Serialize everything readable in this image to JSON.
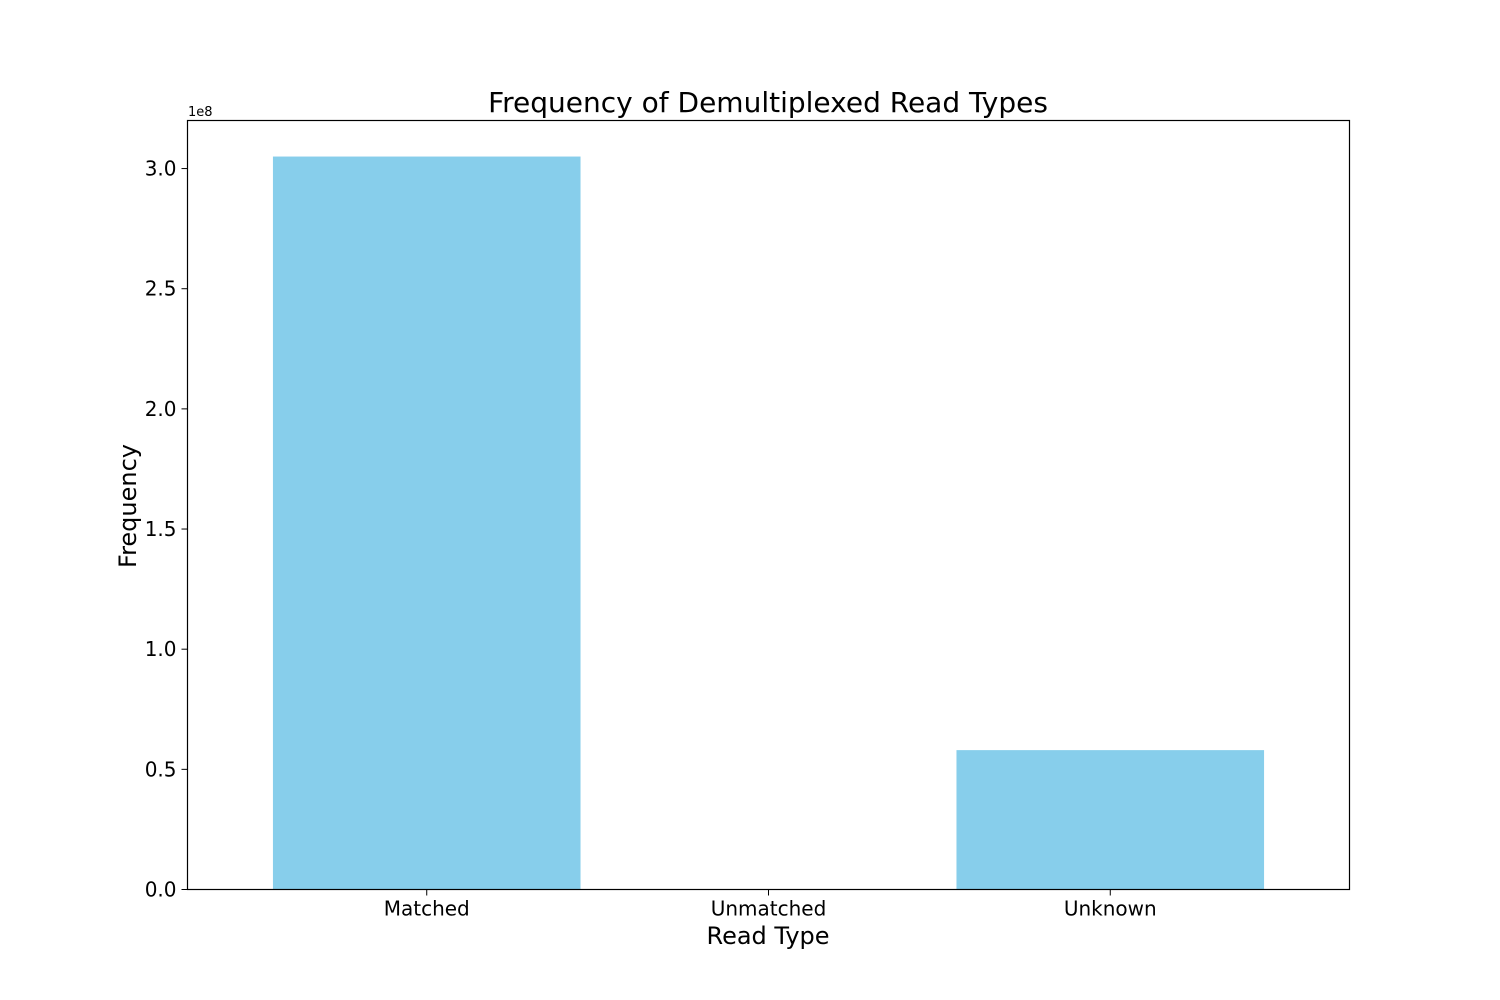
{
  "chart_data": {
    "type": "bar",
    "title": "Frequency of Demultiplexed Read Types",
    "xlabel": "Read Type",
    "ylabel": "Frequency",
    "y_offset_label": "1e8",
    "y_scale": 100000000,
    "categories": [
      "Matched",
      "Unmatched",
      "Unknown"
    ],
    "values": [
      305000000,
      200000,
      58000000
    ],
    "ylim": [
      0,
      320000000
    ],
    "yticks": [
      0,
      50000000,
      100000000,
      150000000,
      200000000,
      250000000,
      300000000
    ],
    "ytick_labels": [
      "0.0",
      "0.5",
      "1.0",
      "1.5",
      "2.0",
      "2.5",
      "3.0"
    ],
    "grid": false,
    "bar_color": "#87CEEB"
  }
}
